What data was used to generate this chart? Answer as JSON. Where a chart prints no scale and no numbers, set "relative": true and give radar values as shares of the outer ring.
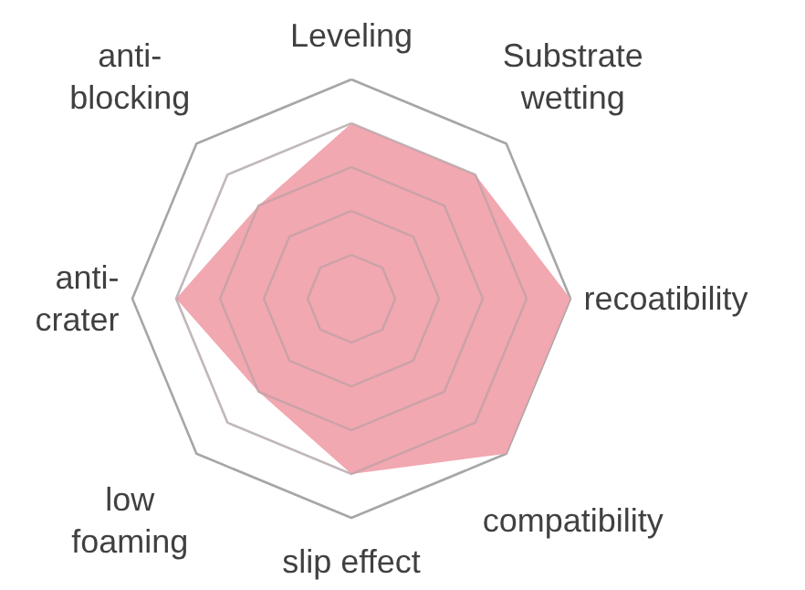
{
  "chart_data": {
    "type": "radar",
    "relative": true,
    "grid": true,
    "categories": [
      "Leveling",
      "Substrate\nwetting",
      "recoatibility",
      "compatibility",
      "slip effect",
      "low\nfoaming",
      "anti-\ncrater",
      "anti-\nblocking"
    ],
    "series": [
      {
        "color": "#f0a3ad",
        "values": [
          0.8,
          0.8,
          1.0,
          1.0,
          0.8,
          0.6,
          0.8,
          0.6
        ]
      }
    ]
  }
}
